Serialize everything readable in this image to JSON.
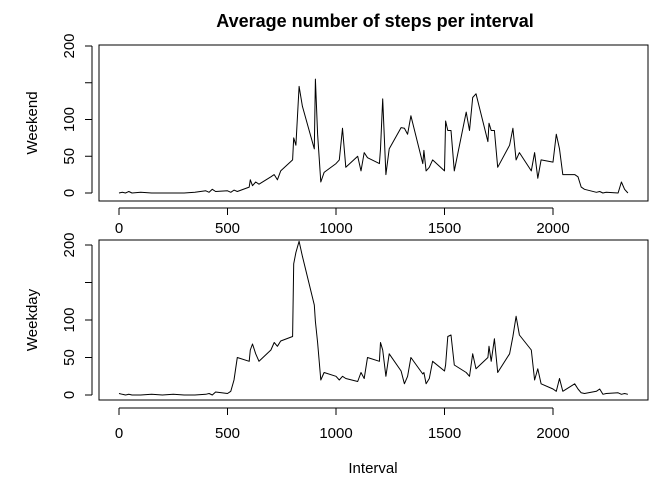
{
  "chart_data": {
    "type": "line",
    "title": "Average number of steps per interval",
    "xlabel": "Interval",
    "xlim": [
      -50,
      2400
    ],
    "x_ticks": [
      0,
      500,
      1000,
      1500,
      2000
    ],
    "y_ticks": [
      0,
      50,
      100,
      200
    ],
    "y_minor_ticks": [
      150
    ],
    "grid": false,
    "legend": "none",
    "panels": [
      {
        "ylabel": "Weekend",
        "ylim": [
          -3,
          200
        ],
        "x": [
          0,
          15,
          30,
          45,
          60,
          100,
          150,
          200,
          250,
          300,
          350,
          400,
          415,
          430,
          445,
          500,
          515,
          530,
          545,
          600,
          605,
          615,
          630,
          645,
          700,
          715,
          730,
          745,
          800,
          805,
          815,
          830,
          845,
          900,
          905,
          915,
          930,
          945,
          1000,
          1015,
          1030,
          1045,
          1100,
          1115,
          1130,
          1145,
          1200,
          1205,
          1215,
          1230,
          1245,
          1300,
          1315,
          1330,
          1345,
          1400,
          1405,
          1415,
          1430,
          1445,
          1500,
          1505,
          1515,
          1530,
          1545,
          1600,
          1615,
          1630,
          1645,
          1700,
          1705,
          1715,
          1730,
          1745,
          1800,
          1815,
          1830,
          1845,
          1900,
          1915,
          1930,
          1945,
          2000,
          2015,
          2030,
          2045,
          2100,
          2115,
          2130,
          2145,
          2200,
          2215,
          2230,
          2245,
          2300,
          2315,
          2330,
          2345
        ],
        "values": [
          0,
          1,
          0,
          2,
          0,
          1,
          0,
          0,
          0,
          0,
          1,
          3,
          1,
          5,
          2,
          3,
          1,
          4,
          2,
          8,
          18,
          10,
          15,
          12,
          22,
          25,
          18,
          30,
          45,
          75,
          65,
          145,
          118,
          60,
          155,
          80,
          15,
          28,
          40,
          45,
          88,
          35,
          50,
          30,
          55,
          48,
          40,
          60,
          128,
          25,
          60,
          89,
          88,
          80,
          105,
          40,
          58,
          30,
          35,
          45,
          30,
          98,
          85,
          85,
          30,
          110,
          85,
          130,
          135,
          70,
          95,
          85,
          85,
          35,
          65,
          88,
          45,
          55,
          30,
          55,
          20,
          45,
          42,
          80,
          60,
          25,
          25,
          22,
          8,
          5,
          1,
          2,
          0,
          1,
          0,
          15,
          5,
          0
        ],
        "line_color": "#000000"
      },
      {
        "ylabel": "Weekday",
        "ylim": [
          -3,
          205
        ],
        "x": [
          0,
          15,
          30,
          45,
          60,
          100,
          150,
          200,
          250,
          300,
          350,
          400,
          415,
          430,
          445,
          500,
          515,
          530,
          545,
          600,
          605,
          615,
          630,
          645,
          700,
          715,
          730,
          745,
          800,
          805,
          815,
          830,
          845,
          900,
          905,
          915,
          930,
          945,
          1000,
          1015,
          1030,
          1045,
          1100,
          1115,
          1130,
          1145,
          1200,
          1205,
          1215,
          1230,
          1245,
          1300,
          1315,
          1330,
          1345,
          1400,
          1405,
          1415,
          1430,
          1445,
          1500,
          1505,
          1515,
          1530,
          1545,
          1600,
          1615,
          1630,
          1645,
          1700,
          1705,
          1715,
          1730,
          1745,
          1800,
          1815,
          1830,
          1845,
          1900,
          1915,
          1930,
          1945,
          2000,
          2015,
          2030,
          2045,
          2100,
          2115,
          2130,
          2145,
          2200,
          2215,
          2230,
          2245,
          2300,
          2315,
          2330,
          2345
        ],
        "values": [
          2,
          1,
          0,
          1,
          0,
          0,
          1,
          0,
          1,
          0,
          0,
          1,
          2,
          0,
          4,
          2,
          5,
          20,
          50,
          45,
          60,
          68,
          55,
          45,
          60,
          70,
          65,
          72,
          78,
          175,
          190,
          205,
          185,
          120,
          98,
          70,
          20,
          30,
          25,
          20,
          25,
          22,
          18,
          30,
          22,
          50,
          45,
          70,
          60,
          25,
          55,
          32,
          15,
          25,
          50,
          28,
          30,
          15,
          22,
          45,
          32,
          40,
          78,
          80,
          40,
          30,
          25,
          55,
          35,
          50,
          65,
          45,
          75,
          30,
          55,
          78,
          105,
          80,
          60,
          20,
          35,
          15,
          8,
          5,
          22,
          5,
          15,
          8,
          3,
          2,
          5,
          8,
          1,
          2,
          3,
          1,
          2,
          1
        ],
        "line_color": "#000000"
      }
    ]
  }
}
